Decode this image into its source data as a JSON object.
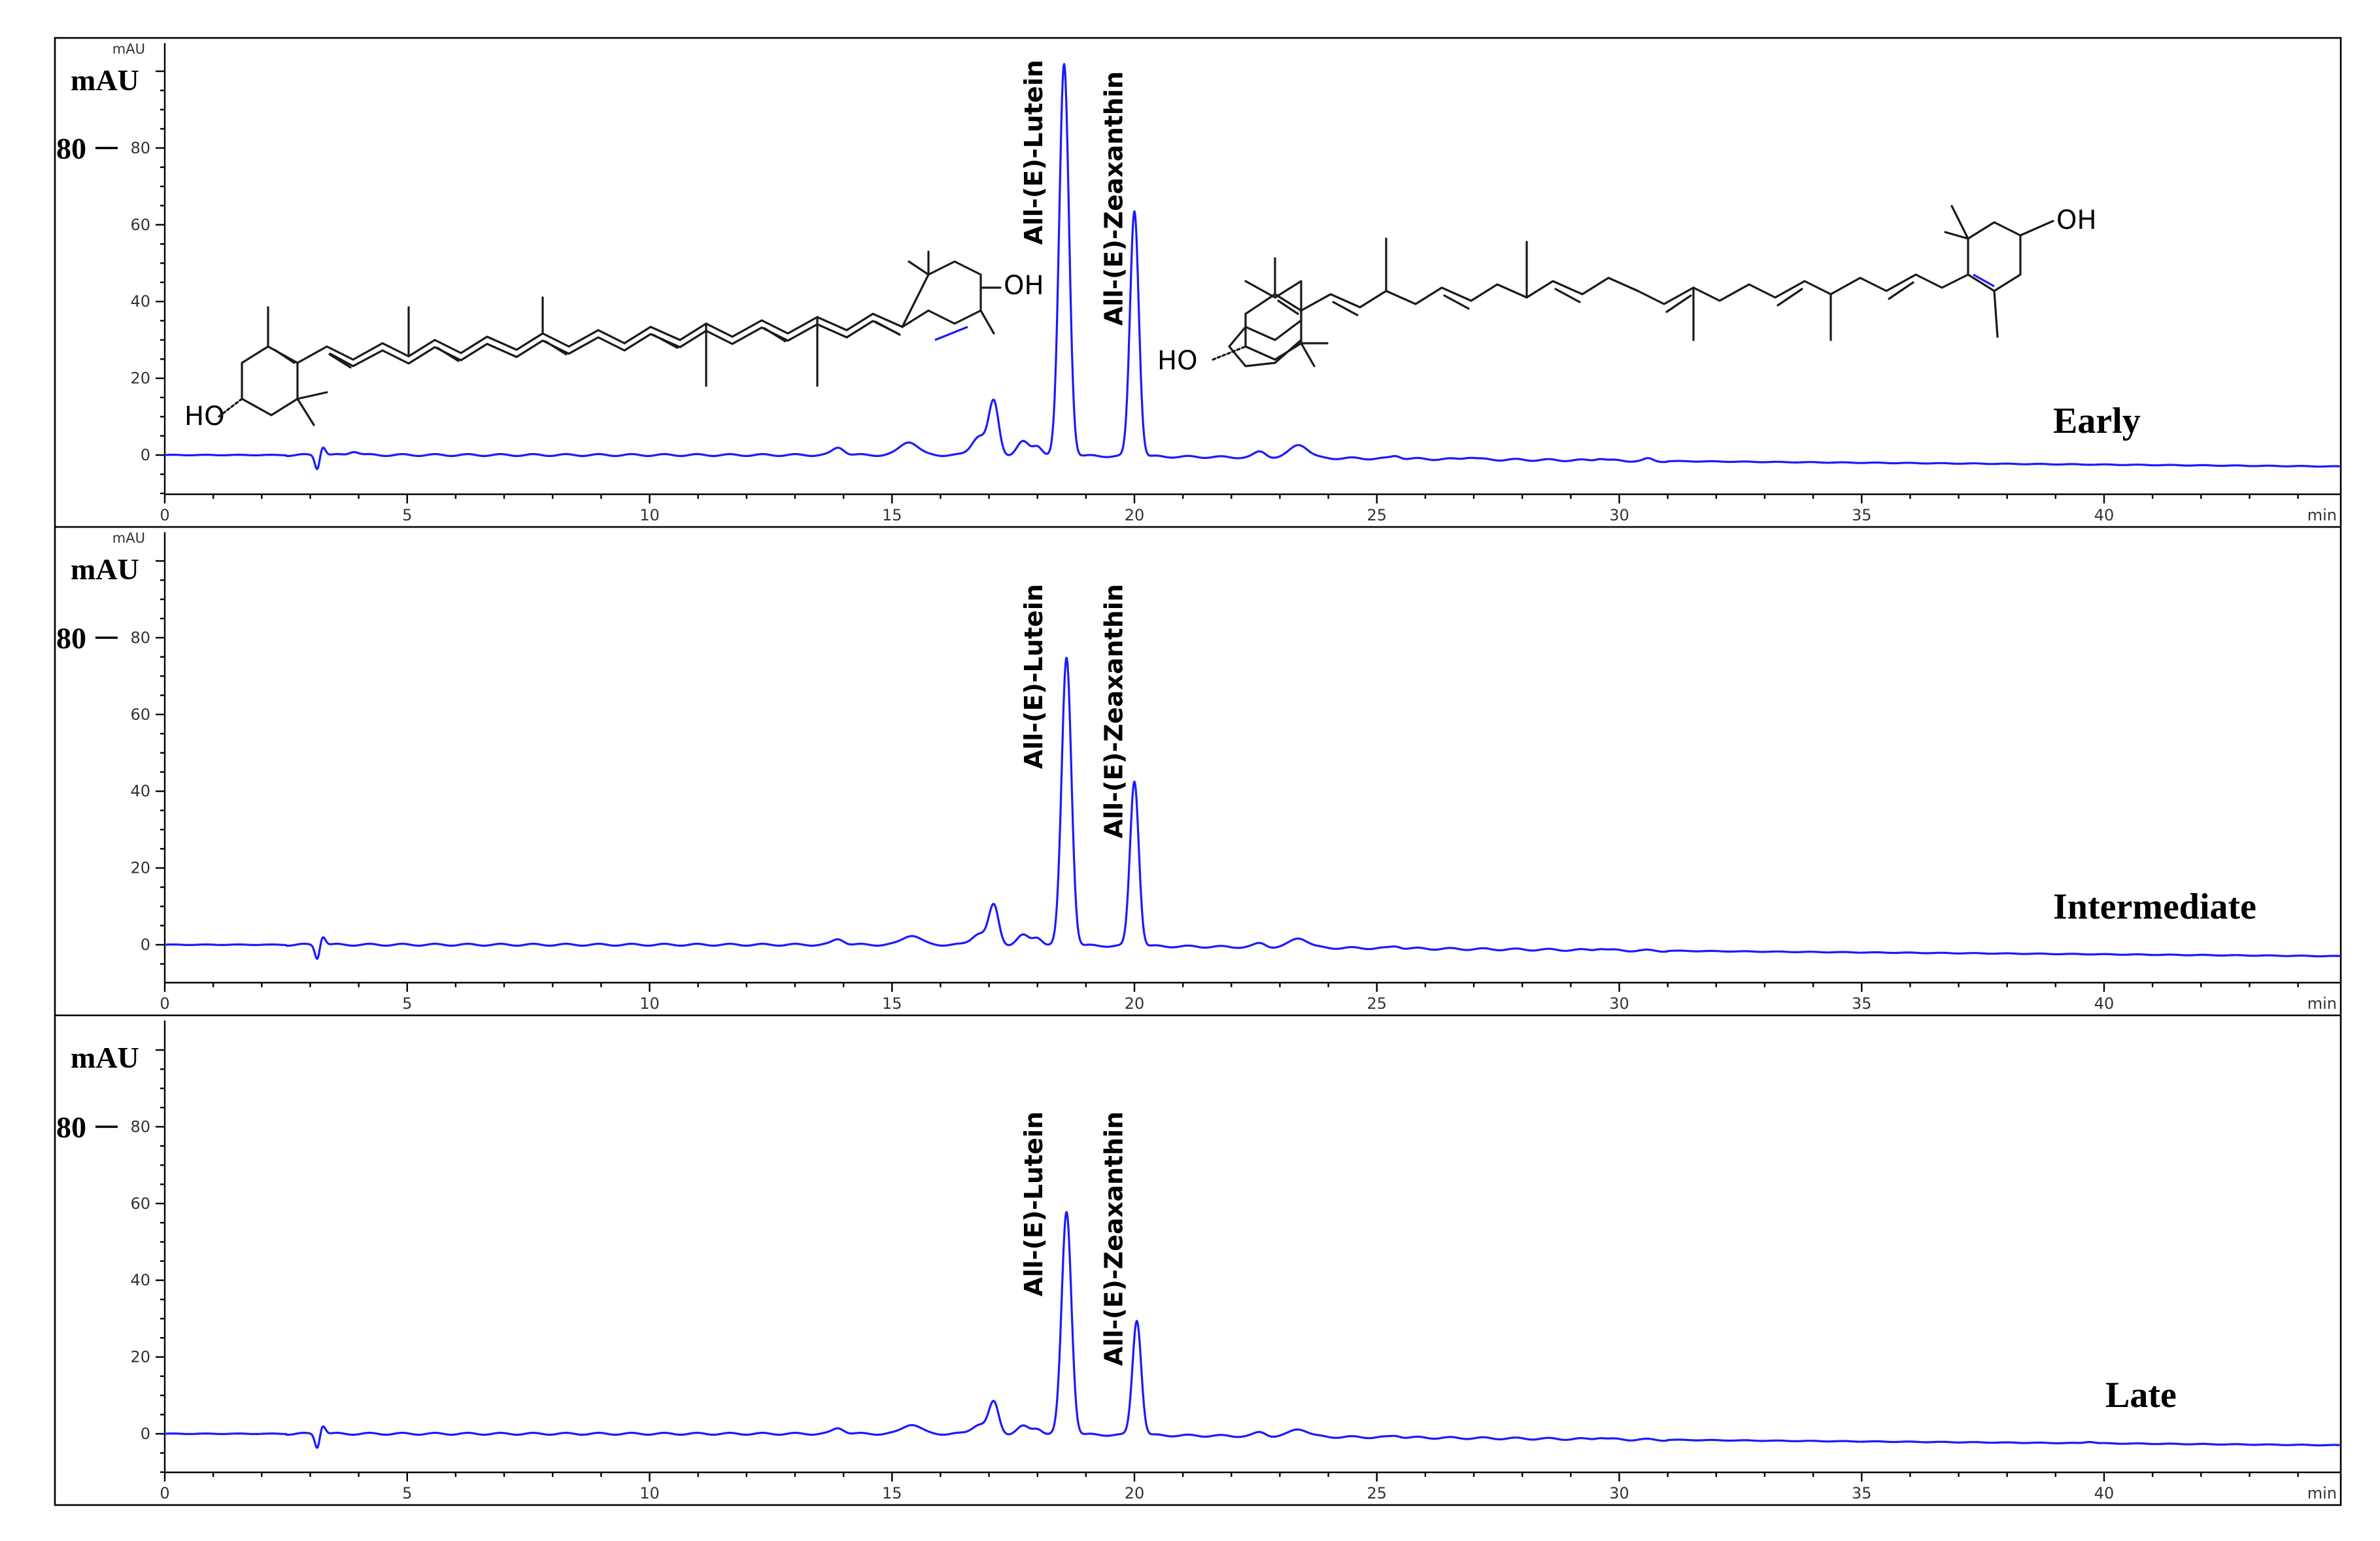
{
  "chart_data": [
    {
      "type": "line",
      "panel": "Early",
      "label": "Early",
      "ylabel": "mAU",
      "ylabel_small": "mAU",
      "xunit": "min",
      "xlim": [
        0,
        45
      ],
      "ylim": [
        -10,
        105
      ],
      "y_highlight_tick": "80",
      "xticks": [
        0,
        5,
        10,
        15,
        20,
        25,
        30,
        35,
        40
      ],
      "yticks": [
        0,
        20,
        40,
        60,
        80
      ],
      "peaks": [
        {
          "x": 3.15,
          "y": -4,
          "w": 0.05
        },
        {
          "x": 3.25,
          "y": 2.5,
          "w": 0.06
        },
        {
          "x": 3.9,
          "y": 1.0,
          "w": 0.1
        },
        {
          "x": 13.9,
          "y": 2.0,
          "w": 0.12
        },
        {
          "x": 15.35,
          "y": 3.5,
          "w": 0.18
        },
        {
          "x": 16.8,
          "y": 5.0,
          "w": 0.15
        },
        {
          "x": 17.1,
          "y": 13.5,
          "w": 0.1
        },
        {
          "x": 17.7,
          "y": 3.5,
          "w": 0.12
        },
        {
          "x": 18.0,
          "y": 2.5,
          "w": 0.1
        },
        {
          "x": 18.55,
          "y": 102,
          "w": 0.1
        },
        {
          "x": 20.0,
          "y": 64,
          "w": 0.09
        },
        {
          "x": 22.6,
          "y": 1.5,
          "w": 0.12
        },
        {
          "x": 23.4,
          "y": 3.5,
          "w": 0.18
        },
        {
          "x": 25.4,
          "y": 0.8,
          "w": 0.1
        },
        {
          "x": 26.9,
          "y": 0.6,
          "w": 0.12
        },
        {
          "x": 29.6,
          "y": 0.6,
          "w": 0.1
        },
        {
          "x": 30.6,
          "y": 0.5,
          "w": 0.08
        }
      ],
      "baseline": [
        {
          "x": 0,
          "y": 0
        },
        {
          "x": 17,
          "y": 0
        },
        {
          "x": 24,
          "y": -0.8
        },
        {
          "x": 33,
          "y": -1.8
        },
        {
          "x": 45,
          "y": -3.0
        }
      ],
      "annotations": [
        {
          "text": "All-(E)-Lutein",
          "x": 18.1,
          "y": 103
        },
        {
          "text": "All-(E)-Zeaxanthin",
          "x": 19.75,
          "y": 100
        }
      ],
      "structures": {
        "lutein_hydroxyls": [
          "HO",
          "OH"
        ],
        "zeaxanthin_hydroxyls": [
          "HO",
          "OH"
        ]
      }
    },
    {
      "type": "line",
      "panel": "Intermediate",
      "label": "Intermediate",
      "ylabel": "mAU",
      "ylabel_small": "mAU",
      "xunit": "min",
      "xlim": [
        0,
        45
      ],
      "ylim": [
        -10,
        105
      ],
      "y_highlight_tick": "80",
      "xticks": [
        0,
        5,
        10,
        15,
        20,
        25,
        30,
        35,
        40
      ],
      "yticks": [
        0,
        20,
        40,
        60,
        80
      ],
      "peaks": [
        {
          "x": 3.15,
          "y": -4,
          "w": 0.05
        },
        {
          "x": 3.25,
          "y": 2.5,
          "w": 0.06
        },
        {
          "x": 13.9,
          "y": 1.5,
          "w": 0.12
        },
        {
          "x": 15.4,
          "y": 2.5,
          "w": 0.18
        },
        {
          "x": 16.8,
          "y": 3.0,
          "w": 0.15
        },
        {
          "x": 17.1,
          "y": 10,
          "w": 0.1
        },
        {
          "x": 17.7,
          "y": 2.5,
          "w": 0.12
        },
        {
          "x": 18.0,
          "y": 2.0,
          "w": 0.1
        },
        {
          "x": 18.6,
          "y": 75,
          "w": 0.1
        },
        {
          "x": 20.0,
          "y": 43,
          "w": 0.09
        },
        {
          "x": 22.6,
          "y": 1.0,
          "w": 0.12
        },
        {
          "x": 23.4,
          "y": 2.5,
          "w": 0.18
        },
        {
          "x": 25.4,
          "y": 0.6,
          "w": 0.1
        },
        {
          "x": 29.6,
          "y": 0.5,
          "w": 0.1
        }
      ],
      "baseline": [
        {
          "x": 0,
          "y": 0
        },
        {
          "x": 17,
          "y": 0
        },
        {
          "x": 24,
          "y": -0.8
        },
        {
          "x": 33,
          "y": -1.8
        },
        {
          "x": 45,
          "y": -3.0
        }
      ],
      "annotations": [
        {
          "text": "All-(E)-Lutein",
          "x": 18.1,
          "y": 94
        },
        {
          "text": "All-(E)-Zeaxanthin",
          "x": 19.75,
          "y": 94
        }
      ]
    },
    {
      "type": "line",
      "panel": "Late",
      "label": "Late",
      "ylabel": "mAU",
      "ylabel_small": "",
      "xunit": "min",
      "xlim": [
        0,
        45
      ],
      "ylim": [
        -10,
        105
      ],
      "y_highlight_tick": "80",
      "xticks": [
        0,
        5,
        10,
        15,
        20,
        25,
        30,
        35,
        40
      ],
      "yticks": [
        0,
        20,
        40,
        60,
        80
      ],
      "peaks": [
        {
          "x": 3.15,
          "y": -4,
          "w": 0.05
        },
        {
          "x": 3.25,
          "y": 2.5,
          "w": 0.06
        },
        {
          "x": 13.9,
          "y": 1.5,
          "w": 0.12
        },
        {
          "x": 15.4,
          "y": 2.5,
          "w": 0.18
        },
        {
          "x": 16.8,
          "y": 2.5,
          "w": 0.15
        },
        {
          "x": 17.1,
          "y": 8,
          "w": 0.1
        },
        {
          "x": 17.7,
          "y": 2.0,
          "w": 0.12
        },
        {
          "x": 18.0,
          "y": 1.5,
          "w": 0.1
        },
        {
          "x": 18.6,
          "y": 58,
          "w": 0.1
        },
        {
          "x": 20.05,
          "y": 30,
          "w": 0.09
        },
        {
          "x": 22.6,
          "y": 1.0,
          "w": 0.12
        },
        {
          "x": 23.4,
          "y": 2.0,
          "w": 0.18
        },
        {
          "x": 25.4,
          "y": 0.5,
          "w": 0.1
        },
        {
          "x": 29.6,
          "y": 0.5,
          "w": 0.1
        },
        {
          "x": 39.7,
          "y": 0.4,
          "w": 0.1
        }
      ],
      "baseline": [
        {
          "x": 0,
          "y": 0
        },
        {
          "x": 17,
          "y": 0
        },
        {
          "x": 24,
          "y": -0.8
        },
        {
          "x": 33,
          "y": -1.8
        },
        {
          "x": 45,
          "y": -3.0
        }
      ],
      "annotations": [
        {
          "text": "All-(E)-Lutein",
          "x": 18.1,
          "y": 84
        },
        {
          "text": "All-(E)-Zeaxanthin",
          "x": 19.75,
          "y": 84
        }
      ]
    }
  ]
}
